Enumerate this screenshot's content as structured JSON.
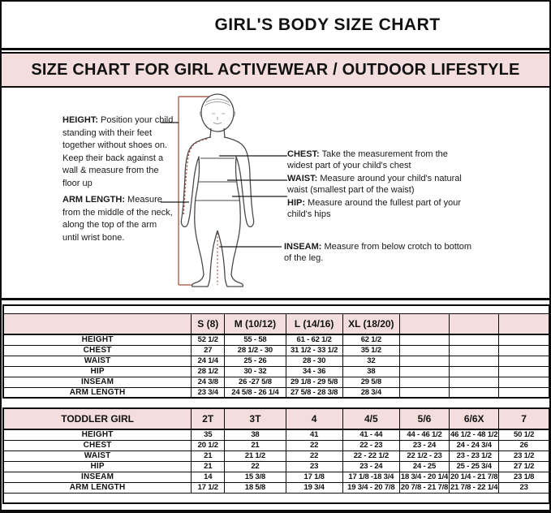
{
  "page": {
    "title": "GIRL'S BODY SIZE CHART",
    "banner": "SIZE CHART FOR GIRL ACTIVEWEAR / OUTDOOR LIFESTYLE"
  },
  "colors": {
    "banner_pink": "#f3dedd",
    "border_black": "#0c0c0c",
    "height_line": "#a86050",
    "dotted_red": "#9c4b3c"
  },
  "diagram": {
    "figure": "child-body-outline",
    "notes": {
      "height": {
        "term": "HEIGHT:",
        "text": " Position your child standing with their feet together without shoes on. Keep their back against a wall & measure from the floor up"
      },
      "arm_length": {
        "term": "ARM LENGTH:",
        "text": "  Measure from the middle of the neck, along the top of the arm until wrist bone."
      },
      "chest": {
        "term": "CHEST:",
        "text": " Take the measurement from the widest part of your child's chest"
      },
      "waist": {
        "term": "WAIST:",
        "text": " Measure around your child's natural waist (smallest part of the waist)"
      },
      "hip": {
        "term": "HIP:",
        "text": " Measure around the fullest part of your child's hips"
      },
      "inseam": {
        "term": "INSEAM:",
        "text": " Measure from below crotch to bottom of the leg."
      }
    }
  },
  "tables": {
    "girl": {
      "columns": [
        "",
        "S (8)",
        "M (10/12)",
        "L (14/16)",
        "XL (18/20)",
        "",
        "",
        ""
      ],
      "rows": [
        [
          "HEIGHT",
          "52 1/2",
          "55 - 58",
          "61 - 62 1/2",
          "62 1/2",
          "",
          "",
          ""
        ],
        [
          "CHEST",
          "27",
          "28 1/2 - 30",
          "31 1/2 - 33 1/2",
          "35 1/2",
          "",
          "",
          ""
        ],
        [
          "WAIST",
          "24 1/4",
          "25 - 26",
          "28 - 30",
          "32",
          "",
          "",
          ""
        ],
        [
          "HIP",
          "28 1/2",
          "30 - 32",
          "34 - 36",
          "38",
          "",
          "",
          ""
        ],
        [
          "INSEAM",
          "24 3/8",
          "26 -27 5/8",
          "29 1/8 - 29 5/8",
          "29 5/8",
          "",
          "",
          ""
        ],
        [
          "ARM LENGTH",
          "23 3/4",
          "24 5/8 - 26 1/4",
          "27 5/8 - 28 3/8",
          "28 3/4",
          "",
          "",
          ""
        ]
      ]
    },
    "toddler": {
      "columns": [
        "TODDLER GIRL",
        "2T",
        "3T",
        "4",
        "4/5",
        "5/6",
        "6/6X",
        "7"
      ],
      "rows": [
        [
          "HEIGHT",
          "35",
          "38",
          "41",
          "41 - 44",
          "44 - 46 1/2",
          "46 1/2 - 48 1/2",
          "50 1/2"
        ],
        [
          "CHEST",
          "20 1/2",
          "21",
          "22",
          "22 - 23",
          "23 - 24",
          "24 - 24 3/4",
          "26"
        ],
        [
          "WAIST",
          "21",
          "21 1/2",
          "22",
          "22 - 22 1/2",
          "22 1/2 - 23",
          "23 - 23 1/2",
          "23 1/2"
        ],
        [
          "HIP",
          "21",
          "22",
          "23",
          "23 - 24",
          "24 - 25",
          "25 - 25 3/4",
          "27 1/2"
        ],
        [
          "INSEAM",
          "14",
          "15 3/8",
          "17 1/8",
          "17 1/8 -18 3/4",
          "18 3/4 - 20 1/4",
          "20 1/4 - 21 7/8",
          "23 1/8"
        ],
        [
          "ARM LENGTH",
          "17 1/2",
          "18 5/8",
          "19 3/4",
          "19 3/4 - 20 7/8",
          "20 7/8 - 21 7/8",
          "21 7/8 - 22 1/4",
          "23"
        ]
      ]
    }
  }
}
